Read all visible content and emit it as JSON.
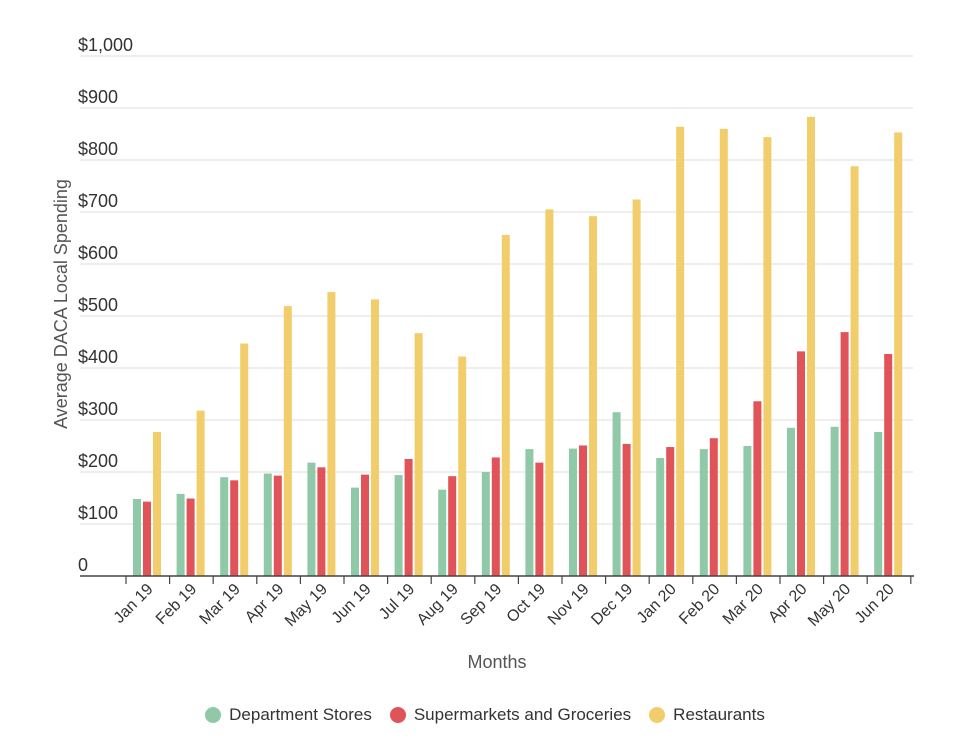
{
  "chart_data": {
    "type": "bar",
    "title": "",
    "xlabel": "Months",
    "ylabel": "Average DACA Local Spending",
    "ylim": [
      0,
      1000
    ],
    "yticks": [
      0,
      100,
      200,
      300,
      400,
      500,
      600,
      700,
      800,
      900,
      1000
    ],
    "ytick_labels": [
      "0",
      "$100",
      "$200",
      "$300",
      "$400",
      "$500",
      "$600",
      "$700",
      "$800",
      "$900",
      "$1,000"
    ],
    "grid": true,
    "legend_position": "bottom-center",
    "categories": [
      "Jan 19",
      "Feb 19",
      "Mar 19",
      "Apr 19",
      "May 19",
      "Jun 19",
      "Jul 19",
      "Aug 19",
      "Sep 19",
      "Oct 19",
      "Nov 19",
      "Dec 19",
      "Jan 20",
      "Feb 20",
      "Mar 20",
      "Apr 20",
      "May 20",
      "Jun 20"
    ],
    "series": [
      {
        "name": "Department Stores",
        "color": "#8fc9a7",
        "values": [
          148,
          158,
          190,
          197,
          218,
          170,
          194,
          166,
          200,
          244,
          245,
          315,
          227,
          244,
          250,
          285,
          287,
          277
        ]
      },
      {
        "name": "Supermarkets and Groceries",
        "color": "#e05359",
        "values": [
          143,
          149,
          184,
          193,
          209,
          195,
          225,
          192,
          228,
          218,
          251,
          254,
          248,
          265,
          336,
          432,
          469,
          427
        ]
      },
      {
        "name": "Restaurants",
        "color": "#f2cd6b",
        "values": [
          277,
          318,
          447,
          519,
          546,
          532,
          467,
          422,
          656,
          705,
          692,
          724,
          864,
          860,
          844,
          883,
          788,
          853
        ]
      }
    ]
  }
}
